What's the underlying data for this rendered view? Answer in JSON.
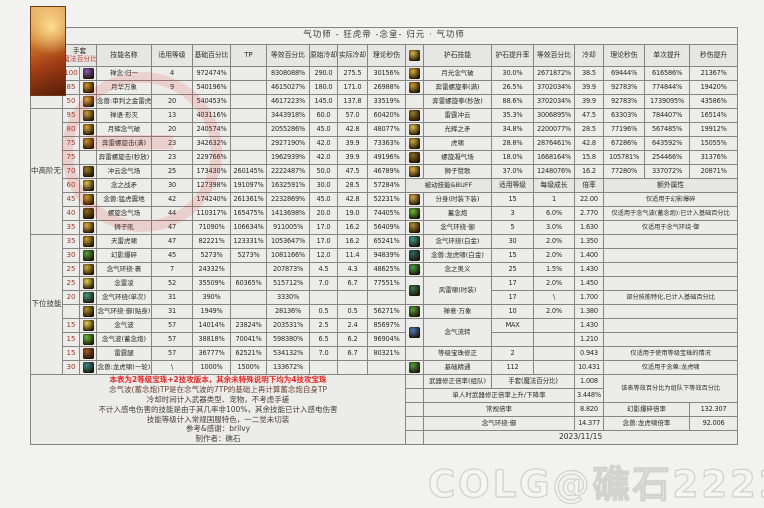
{
  "meta": {
    "title": "气功师 - 狂虎帝 -念皇- 归元 · 气功师",
    "watermark": "COLG@礁石222222",
    "date": "2023/11/15"
  },
  "colors": {
    "accent_red": "#e02a2a",
    "glove_percent_red": "#9e3b2b",
    "cell_bg": "#ececea",
    "border": "#858583"
  },
  "header": {
    "glove1": "手套",
    "glove2": "魔法百分比",
    "left": [
      "技能名称",
      "适用等级",
      "基础百分比",
      "TP",
      "等效百分比",
      "原始冷却",
      "实际冷却",
      "理论秒伤"
    ],
    "right": [
      "护石技能",
      "护石提升率",
      "等效百分比",
      "冷却",
      "理论秒伤",
      "单次提升",
      "秒伤提升"
    ],
    "rune_icon": "rune-stone-icon"
  },
  "categories": [
    {
      "label": "觉醒",
      "start": 0,
      "span": 3
    },
    {
      "label": "中高阶无色",
      "start": 3,
      "span": 9
    },
    {
      "label": "下位技能",
      "start": 12,
      "span": 10
    }
  ],
  "main_rows": [
    {
      "pct": "100",
      "icon": "#8a5ab0",
      "name": "禅念·归一",
      "level": "4",
      "base": "972474%",
      "tp": "",
      "equiv": "8308088%",
      "cd1": "290.0",
      "cd2": "275.5",
      "dps": "30156%"
    },
    {
      "pct": "85",
      "icon": "#d4952a",
      "name": "月华万象",
      "level": "9",
      "base": "540196%",
      "tp": "",
      "equiv": "4615027%",
      "cd1": "180.0",
      "cd2": "171.0",
      "dps": "26988%"
    },
    {
      "pct": "50",
      "icon": "#e0b84a",
      "name": "念兽:审判之金雷虎",
      "level": "20",
      "base": "540453%",
      "tp": "",
      "equiv": "4617223%",
      "cd1": "145.0",
      "cd2": "137.8",
      "dps": "33519%"
    },
    {
      "pct": "95",
      "icon": "#caa23e",
      "name": "禅语·形灭",
      "level": "13",
      "base": "403116%",
      "tp": "",
      "equiv": "3443918%",
      "cd1": "60.0",
      "cd2": "57.0",
      "dps": "60420%"
    },
    {
      "pct": "80",
      "icon": "#d8aa3a",
      "name": "月辉念气破",
      "level": "20",
      "base": "240574%",
      "tp": "",
      "equiv": "2055286%",
      "cd1": "45.0",
      "cd2": "42.8",
      "dps": "48077%"
    },
    {
      "pct": "75",
      "icon": "#c89a30",
      "name": "奔雷螺旋击(满)",
      "level": "23",
      "base": "342632%",
      "tp": "",
      "equiv": "2927190%",
      "cd1": "42.0",
      "cd2": "39.9",
      "dps": "73363%"
    },
    {
      "pct": "75",
      "icon": null,
      "name": "奔雷螺旋击(秒放)",
      "level": "23",
      "base": "229766%",
      "tp": "",
      "equiv": "1962939%",
      "cd1": "42.0",
      "cd2": "39.9",
      "dps": "49196%"
    },
    {
      "pct": "70",
      "icon": "#9a7a28",
      "name": "冲云念气场",
      "level": "25",
      "base": "173430%",
      "tp": "260145%",
      "equiv": "2222487%",
      "cd1": "50.0",
      "cd2": "47.5",
      "dps": "46789%"
    },
    {
      "pct": "60",
      "icon": "#e0c050",
      "name": "念之战矛",
      "level": "30",
      "base": "127398%",
      "tp": "191097%",
      "equiv": "1632591%",
      "cd1": "30.0",
      "cd2": "28.5",
      "dps": "57284%"
    },
    {
      "pct": "45",
      "icon": "#d0a838",
      "name": "念兽:猛虎震地",
      "level": "42",
      "base": "174240%",
      "tp": "261361%",
      "equiv": "2232869%",
      "cd1": "45.0",
      "cd2": "42.8",
      "dps": "52231%"
    },
    {
      "pct": "40",
      "icon": "#8a6a20",
      "name": "螺旋念气场",
      "level": "44",
      "base": "110317%",
      "tp": "165475%",
      "equiv": "1413698%",
      "cd1": "20.0",
      "cd2": "19.0",
      "dps": "74405%"
    },
    {
      "pct": "35",
      "icon": "#e0b040",
      "name": "狮子吼",
      "level": "47",
      "base": "71090%",
      "tp": "106634%",
      "equiv": "911005%",
      "cd1": "17.0",
      "cd2": "16.2",
      "dps": "56409%"
    },
    {
      "pct": "35",
      "icon": "#caa030",
      "name": "天雷虎啸",
      "level": "47",
      "base": "82221%",
      "tp": "123331%",
      "equiv": "1053647%",
      "cd1": "17.0",
      "cd2": "16.2",
      "dps": "65241%"
    },
    {
      "pct": "30",
      "icon": "#58a038",
      "name": "幻影爆碎",
      "level": "45",
      "base": "5273%",
      "tp": "5273%",
      "equiv": "1081166%",
      "cd1": "12.0",
      "cd2": "11.4",
      "dps": "94839%"
    },
    {
      "pct": "25",
      "icon": "#d0b040",
      "name": "念气环绕·裹",
      "level": "7",
      "base": "24332%",
      "tp": "",
      "equiv": "207873%",
      "cd1": "4.5",
      "cd2": "4.3",
      "dps": "48625%"
    },
    {
      "pct": "25",
      "icon": "#e8d050",
      "name": "念雷凌",
      "level": "52",
      "base": "35509%",
      "tp": "60365%",
      "equiv": "515712%",
      "cd1": "7.0",
      "cd2": "6.7",
      "dps": "77551%"
    },
    {
      "pct": "20",
      "icon": "#4a9a7a",
      "name": "念气环绕(单次)",
      "level": "31",
      "base": "390%",
      "tp": "",
      "equiv": "3330%",
      "cd1": "",
      "cd2": "",
      "dps": ""
    },
    {
      "pct": "",
      "icon": "#b09030",
      "name": "念气环绕·御(贴身)",
      "level": "31",
      "base": "1949%",
      "tp": "",
      "equiv": "28136%",
      "cd1": "0.5",
      "cd2": "0.5",
      "dps": "56271%"
    },
    {
      "pct": "15",
      "icon": "#e8d048",
      "name": "念气波",
      "level": "57",
      "base": "14014%",
      "tp": "23824%",
      "equiv": "203531%",
      "cd1": "2.5",
      "cd2": "2.4",
      "dps": "85697%"
    },
    {
      "pct": "15",
      "icon": "#68b838",
      "name": "念气波(蓄念炮)",
      "level": "57",
      "base": "38818%",
      "tp": "70041%",
      "equiv": "598380%",
      "cd1": "6.5",
      "cd2": "6.2",
      "dps": "96904%"
    },
    {
      "pct": "15",
      "icon": "#a05a28",
      "name": "雷霆腿",
      "level": "57",
      "base": "36777%",
      "tp": "62521%",
      "equiv": "534132%",
      "cd1": "7.0",
      "cd2": "6.7",
      "dps": "80321%"
    },
    {
      "pct": "30",
      "icon": "#3a8a8a",
      "name": "念兽:龙虎啸(一轮)",
      "level": "\\",
      "base": "1000%",
      "tp": "1500%",
      "equiv": "133672%",
      "cd1": "",
      "cd2": "",
      "dps": ""
    }
  ],
  "rune_rows": [
    {
      "icon": "#d8aa3a",
      "name": "月光念气破",
      "rate": "30.0%",
      "equiv": "2671872%",
      "cd": "38.5",
      "dps": "69444%",
      "single": "616586%",
      "up": "21367%"
    },
    {
      "icon": "#c89a30",
      "name": "奔雷螺旋拳(满)",
      "rate": "26.5%",
      "equiv": "3702034%",
      "cd": "39.9",
      "dps": "92783%",
      "single": "774844%",
      "up": "19420%"
    },
    {
      "icon": null,
      "name": "奔雷螺旋拳(秒放)",
      "rate": "88.6%",
      "equiv": "3702034%",
      "cd": "39.9",
      "dps": "92783%",
      "single": "1739095%",
      "up": "43586%"
    },
    {
      "icon": "#9a7a28",
      "name": "雷霆冲云",
      "rate": "35.3%",
      "equiv": "3006895%",
      "cd": "47.5",
      "dps": "63303%",
      "single": "784407%",
      "up": "16514%"
    },
    {
      "icon": "#e0c050",
      "name": "光辉之矛",
      "rate": "34.8%",
      "equiv": "2200077%",
      "cd": "28.5",
      "dps": "77196%",
      "single": "567485%",
      "up": "19912%"
    },
    {
      "icon": "#d0a838",
      "name": "虎啸",
      "rate": "28.8%",
      "equiv": "2876461%",
      "cd": "42.8",
      "dps": "67286%",
      "single": "643592%",
      "up": "15055%"
    },
    {
      "icon": "#8a6a20",
      "name": "螺旋凝气场",
      "rate": "18.0%",
      "equiv": "1668164%",
      "cd": "15.8",
      "dps": "105781%",
      "single": "254466%",
      "up": "31376%"
    },
    {
      "icon": "#e0b040",
      "name": "狮子赞歌",
      "rate": "37.0%",
      "equiv": "1248076%",
      "cd": "16.2",
      "dps": "77280%",
      "single": "337072%",
      "up": "20871%"
    }
  ],
  "passive_header": {
    "title": "被动技能&BUFF",
    "col1": "适用等级",
    "col2": "每级成长",
    "col3": "倍率",
    "col4": "额外属性"
  },
  "passive_rows": [
    {
      "icon": "#d8a848",
      "name": "分身(时装下装)",
      "level": "15",
      "growth": "1",
      "ratio": "22.00",
      "note": "仅适用于幻影爆碎"
    },
    {
      "icon": "#68b838",
      "name": "蓄念炮",
      "level": "3",
      "growth": "6.0%",
      "ratio": "2.770",
      "note": "仅适用于念气波(蓄念炮):已计入基础百分比"
    },
    {
      "icon": "#b09030",
      "name": "念气环绕·御",
      "level": "5",
      "growth": "3.0%",
      "ratio": "1.630",
      "note": "仅适用于念气环绕·御"
    },
    {
      "icon": "#3a9a8a",
      "name": "念气环绕(白金)",
      "level": "30",
      "growth": "2.0%",
      "ratio": "1.350",
      "note": ""
    },
    {
      "icon": "#2a6a6a",
      "name": "念兽:龙虎啸(白金)",
      "level": "15",
      "growth": "2.0%",
      "ratio": "1.400",
      "note": ""
    },
    {
      "icon": "#48a048",
      "name": "念之奥义",
      "level": "25",
      "growth": "1.5%",
      "ratio": "1.430",
      "note": ""
    },
    {
      "icon": "#3a7a4a",
      "name": "风雷啸(时装)",
      "span": 2,
      "level": "17",
      "growth": "2.0%",
      "ratio": "1.450",
      "note": ""
    },
    {
      "cont": true,
      "level": "17",
      "growth": "\\",
      "ratio": "1.700",
      "note": "部分技能特化,已计入基础百分比"
    },
    {
      "icon": "#58a038",
      "name": "禅意·万象",
      "level": "10",
      "growth": "2.0%",
      "ratio": "1.380",
      "note": ""
    },
    {
      "icon": "#4a7ab8",
      "name": "念气流转",
      "span": 2,
      "level": "MAX",
      "growth": "",
      "ratio": "1.430",
      "note": ""
    },
    {
      "cont": true,
      "level": "",
      "growth": "",
      "ratio": "1.210",
      "note": ""
    },
    {
      "icon": null,
      "name": "等级宝珠修正",
      "level": "2",
      "growth": "",
      "ratio": "0.943",
      "note": "仅适用于使用等级宝珠的情况"
    },
    {
      "icon": "#50a040",
      "name": "基础精通",
      "level": "112",
      "growth": "",
      "ratio": "10.431",
      "note": "仅适用于念兽:龙虎啸"
    }
  ],
  "bottom": {
    "weapon_row_label": "武器修正倍率(组队)",
    "weapon_row_value": "手套(魔法百分比)",
    "weapon_row_ratio": "1.008",
    "weapon_note": "该表等效百分比为组队下等效百分比",
    "solo_label": "单人时武器修正倍率上升/下降率",
    "solo_value": "3.448%",
    "normal_label": "常规倍率",
    "normal_value": "8.820",
    "phantom_label": "幻影爆碎倍率",
    "phantom_value": "132.307",
    "raoyu_label": "念气环绕·御",
    "raoyu_value": "14.377",
    "dragon_label": "念兽:龙虎啸倍率",
    "dragon_value": "92.006",
    "date": "2023/11/15"
  },
  "notes": [
    "本表为2等级宝珠+2技攻版本，其余未特殊说明下均为4技攻宝珠",
    "念气波(蓄念炮)TP是在念气波的7TP的基础上再计算蓄念炮自身TP",
    "冷却时间计入武器类型、宠物，不考虑手搓",
    "不计入感电伤害的技能是由于其几率非100%，其余技能已计入感电伤害",
    "技能等级计入常规国服特色，一二觉未切装",
    "参考&感谢：brilvy",
    "制作者：礁石"
  ]
}
